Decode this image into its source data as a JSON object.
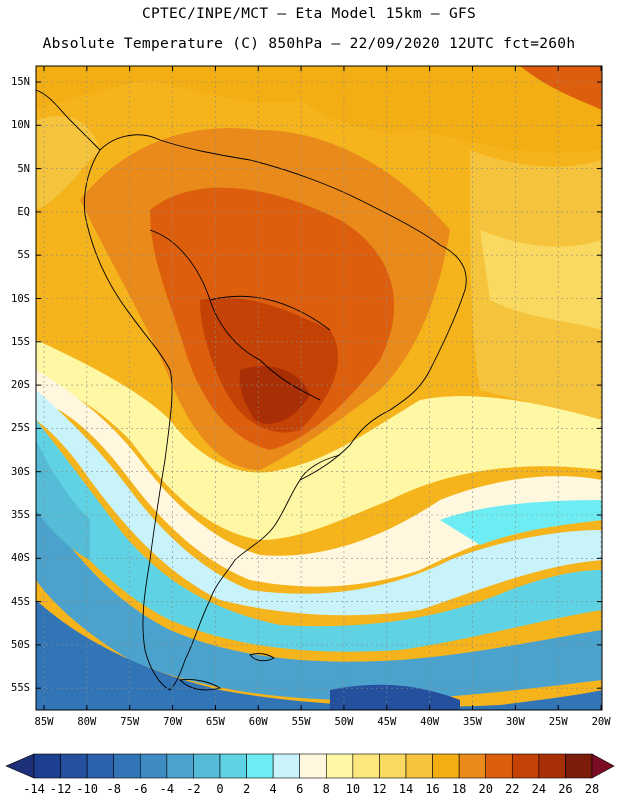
{
  "header": {
    "line1": "CPTEC/INPE/MCT –  Eta Model 15km – GFS",
    "line2": "Absolute Temperature (C) 850hPa – 22/09/2020 12UTC fct=260h"
  },
  "map": {
    "lat_labels": [
      "15N",
      "10N",
      "5N",
      "EQ",
      "5S",
      "10S",
      "15S",
      "20S",
      "25S",
      "30S",
      "35S",
      "40S",
      "45S",
      "50S",
      "55S"
    ],
    "lon_labels": [
      "85W",
      "80W",
      "75W",
      "70W",
      "65W",
      "60W",
      "55W",
      "50W",
      "45W",
      "40W",
      "35W",
      "30W",
      "25W",
      "20W"
    ]
  },
  "colorbar": {
    "labels": [
      "-14",
      "-12",
      "-10",
      "-8",
      "-6",
      "-4",
      "-2",
      "0",
      "2",
      "4",
      "6",
      "8",
      "10",
      "12",
      "14",
      "16",
      "18",
      "20",
      "22",
      "24",
      "26",
      "28"
    ],
    "colors": [
      "#1d3f8f",
      "#24509e",
      "#2b62ad",
      "#3275b7",
      "#3d8bc2",
      "#4aa2cd",
      "#55bcd8",
      "#5fd3e3",
      "#6dedf3",
      "#c9f3fb",
      "#fff8df",
      "#fef7a3",
      "#fde67c",
      "#f9d95f",
      "#f5c43c",
      "#f2ae12",
      "#e98a1a",
      "#dd5f0d",
      "#c44205",
      "#a82e06",
      "#7c1d0c"
    ],
    "low_arrow_color": "#1e2f7a",
    "high_arrow_color": "#7a0b22"
  }
}
